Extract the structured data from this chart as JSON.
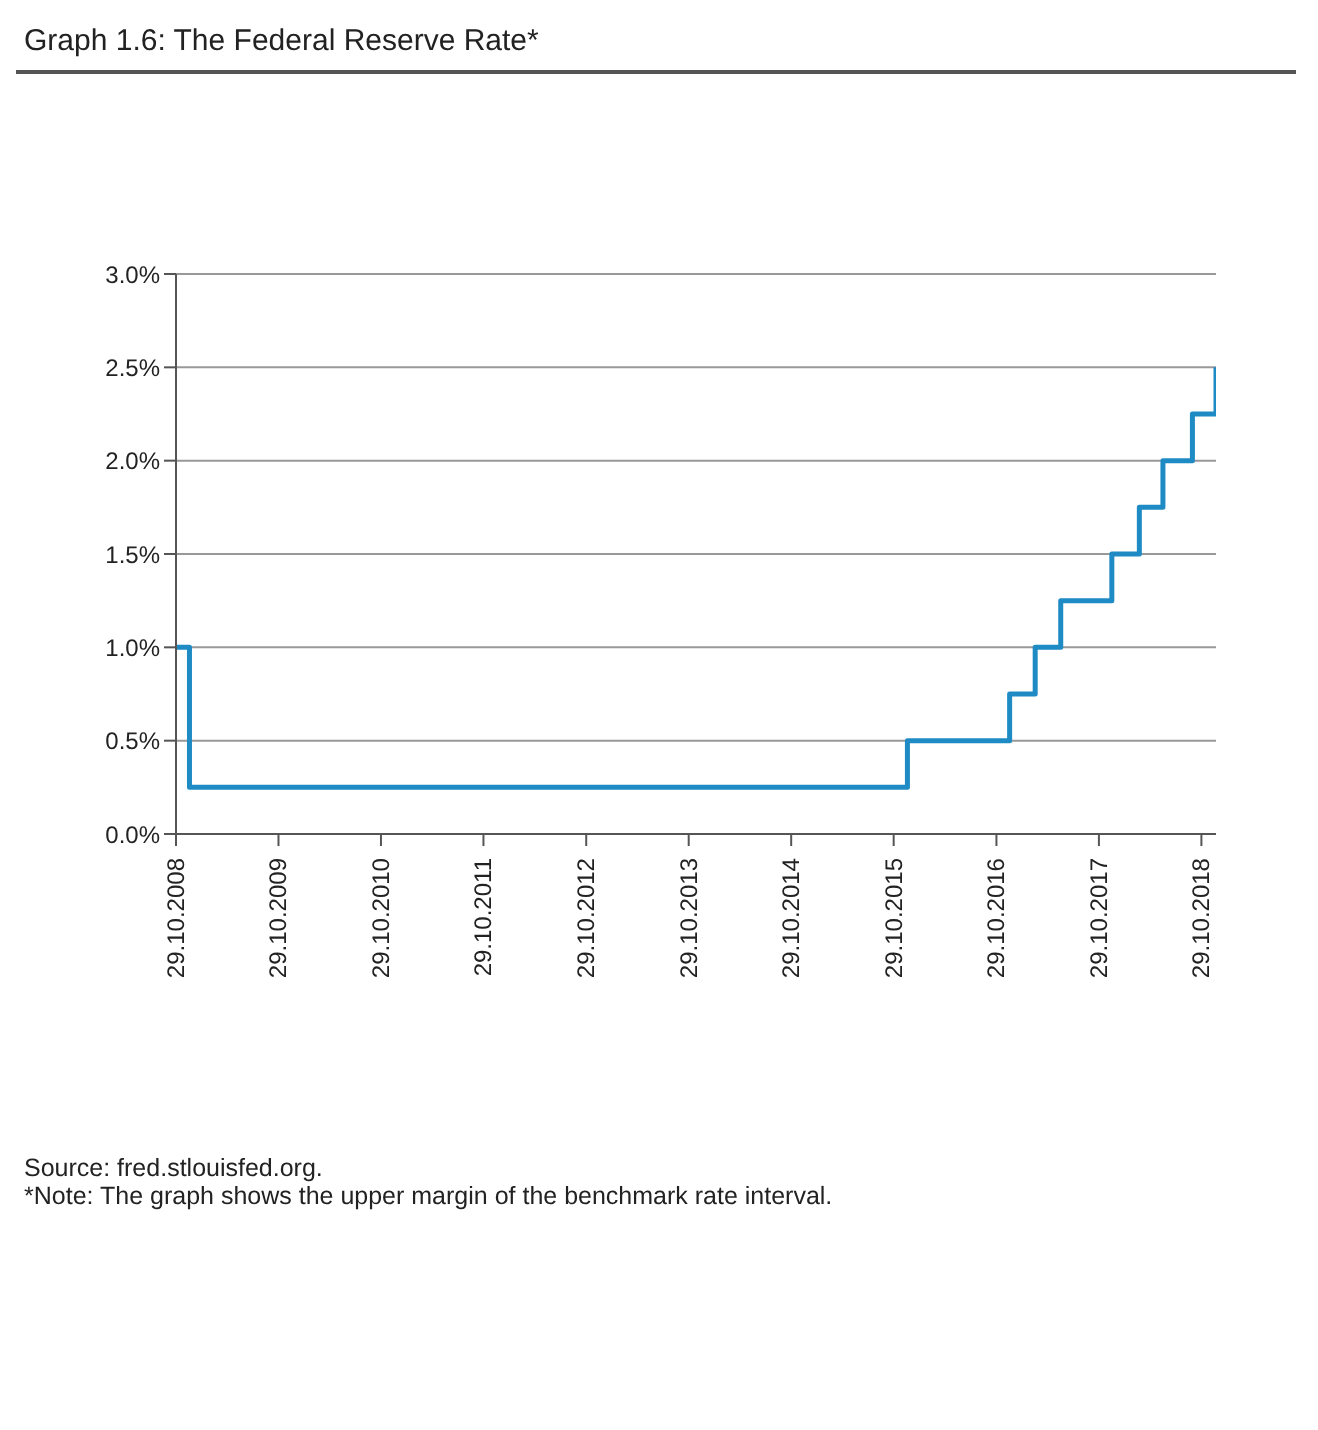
{
  "chart_data": {
    "type": "step",
    "title": "Graph 1.6: The Federal Reserve Rate*",
    "x": [
      "2008-10-29",
      "2008-12-16",
      "2015-12-17",
      "2016-12-15",
      "2017-03-16",
      "2017-06-15",
      "2017-12-14",
      "2018-03-22",
      "2018-06-14",
      "2018-09-27",
      "2018-12-20"
    ],
    "series": [
      {
        "color": "#1f8bc4",
        "values": [
          1.0,
          0.25,
          0.5,
          0.75,
          1.0,
          1.25,
          1.5,
          1.75,
          2.0,
          2.25,
          2.5
        ]
      }
    ],
    "xlim": [
      "2008-10-29",
      "2018-12-20"
    ],
    "xticks": [
      {
        "value": "2008-10-29",
        "label": "29.10.2008"
      },
      {
        "value": "2009-10-29",
        "label": "29.10.2009"
      },
      {
        "value": "2010-10-29",
        "label": "29.10.2010"
      },
      {
        "value": "2011-10-29",
        "label": "29.10.2011"
      },
      {
        "value": "2012-10-29",
        "label": "29.10.2012"
      },
      {
        "value": "2013-10-29",
        "label": "29.10.2013"
      },
      {
        "value": "2014-10-29",
        "label": "29.10.2014"
      },
      {
        "value": "2015-10-29",
        "label": "29.10.2015"
      },
      {
        "value": "2016-10-29",
        "label": "29.10.2016"
      },
      {
        "value": "2017-10-29",
        "label": "29.10.2017"
      },
      {
        "value": "2018-10-29",
        "label": "29.10.2018"
      }
    ],
    "ylim": [
      0,
      3
    ],
    "yticks": [
      {
        "value": 0,
        "label": "0.0%"
      },
      {
        "value": 0.5,
        "label": "0.5%"
      },
      {
        "value": 1,
        "label": "1.0%"
      },
      {
        "value": 1.5,
        "label": "1.5%"
      },
      {
        "value": 2,
        "label": "2.0%"
      },
      {
        "value": 2.5,
        "label": "2.5%"
      },
      {
        "value": 3,
        "label": "3.0%"
      }
    ],
    "grid": "y",
    "legend": false,
    "annotations": [
      "Source: fred.stlouisfed.org.",
      "*Note: The graph shows the upper margin of the benchmark rate interval."
    ]
  }
}
